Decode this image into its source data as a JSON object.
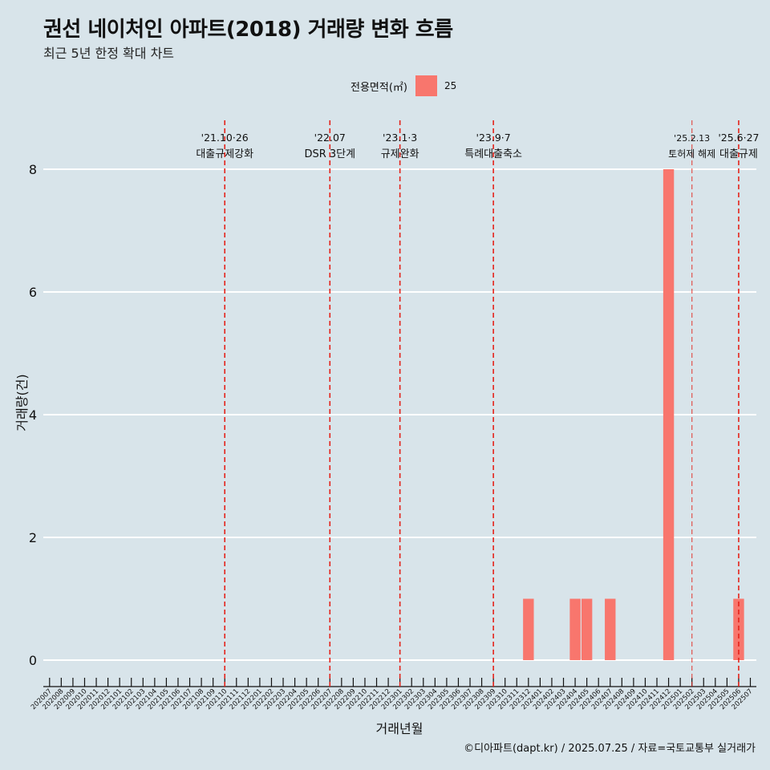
{
  "title": "권선 네이처인 아파트(2018) 거래량 변화 흐름",
  "subtitle": "최근 5년 한정 확대 차트",
  "caption": "©디아파트(dapt.kr) / 2025.07.25 / 자료=국토교통부 실거래가",
  "colors": {
    "background": "#d8e4ea",
    "bar": "#f8766d",
    "event_line": "#e4231b",
    "grid": "#ffffff"
  },
  "chart_data": {
    "type": "bar",
    "xlabel": "거래년월",
    "ylabel": "거래량(건)",
    "ylim": [
      0,
      8
    ],
    "yticks": [
      0,
      2,
      4,
      6,
      8
    ],
    "grid": "horizontal",
    "legend": {
      "title": "전용면적(㎡)",
      "placement": "top",
      "items": [
        {
          "label": "25",
          "color": "#f8766d"
        }
      ]
    },
    "categories": [
      "202007",
      "202008",
      "202009",
      "202010",
      "202011",
      "202012",
      "202101",
      "202102",
      "202103",
      "202104",
      "202105",
      "202106",
      "202107",
      "202108",
      "202109",
      "202110",
      "202111",
      "202112",
      "202201",
      "202202",
      "202203",
      "202204",
      "202205",
      "202206",
      "202207",
      "202208",
      "202209",
      "202210",
      "202211",
      "202212",
      "202301",
      "202302",
      "202303",
      "202304",
      "202305",
      "202306",
      "202307",
      "202308",
      "202309",
      "202310",
      "202311",
      "202312",
      "202401",
      "202402",
      "202403",
      "202404",
      "202405",
      "202406",
      "202407",
      "202408",
      "202409",
      "202410",
      "202411",
      "202412",
      "202501",
      "202502",
      "202503",
      "202504",
      "202505",
      "202506",
      "202507"
    ],
    "series": [
      {
        "name": "25",
        "values": [
          0,
          0,
          0,
          0,
          0,
          0,
          0,
          0,
          0,
          0,
          0,
          0,
          0,
          0,
          0,
          0,
          0,
          0,
          0,
          0,
          0,
          0,
          0,
          0,
          0,
          0,
          0,
          0,
          0,
          0,
          0,
          0,
          0,
          0,
          0,
          0,
          0,
          0,
          0,
          0,
          0,
          1,
          0,
          0,
          0,
          1,
          1,
          0,
          1,
          0,
          0,
          0,
          0,
          8,
          0,
          0,
          0,
          0,
          0,
          1,
          0
        ]
      }
    ],
    "events": [
      {
        "at": "202110",
        "date": "'21.10·26",
        "label": "대출규제강화"
      },
      {
        "at": "202207",
        "date": "'22.07",
        "label": "DSR 3단계"
      },
      {
        "at": "202301",
        "date": "'23.1·3",
        "label": "규제완화"
      },
      {
        "at": "202309",
        "date": "'23.9·7",
        "label": "특례대출축소"
      },
      {
        "at": "202502",
        "date": "'25.2.13",
        "label": "토허제 해제"
      },
      {
        "at": "202506",
        "date": "'25.6·27",
        "label": "대출규제"
      }
    ]
  }
}
